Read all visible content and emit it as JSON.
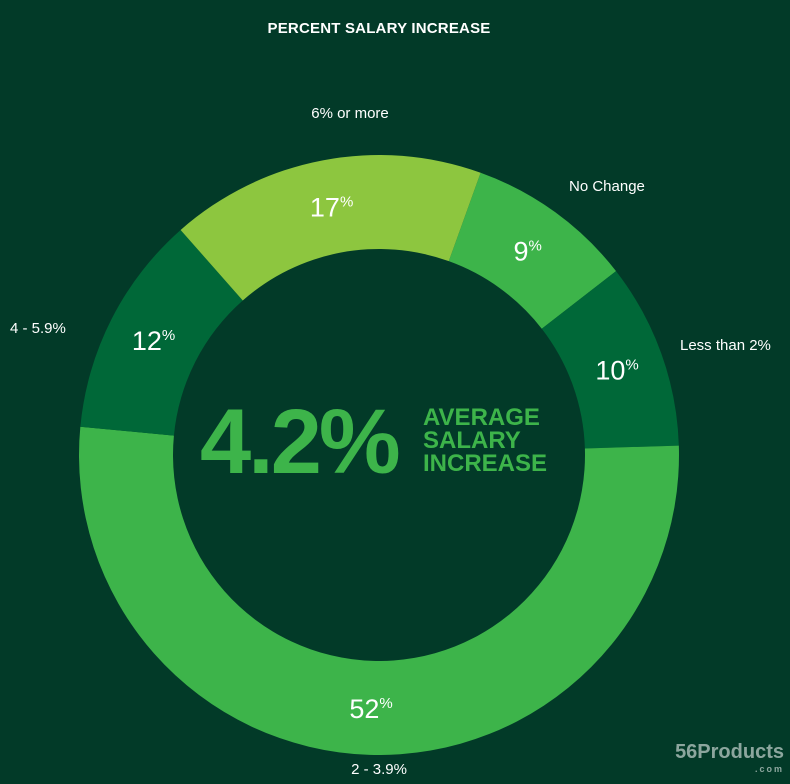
{
  "chart_data": {
    "type": "pie",
    "title": "PERCENT SALARY INCREASE",
    "unit": "%",
    "slices": [
      {
        "label": "No Change",
        "value": 9,
        "color": "#3db44a"
      },
      {
        "label": "Less than 2%",
        "value": 10,
        "color": "#006838"
      },
      {
        "label": "2 - 3.9%",
        "value": 52,
        "color": "#3db44a"
      },
      {
        "label": "4 - 5.9%",
        "value": 12,
        "color": "#006838"
      },
      {
        "label": "6% or more",
        "value": 17,
        "color": "#8dc63f"
      }
    ],
    "center": {
      "value": "4.2%",
      "caption": [
        "AVERAGE",
        "SALARY",
        "INCREASE"
      ],
      "color": "#3db44a"
    }
  },
  "watermark": {
    "text": "56Products",
    "sub": ".com"
  }
}
